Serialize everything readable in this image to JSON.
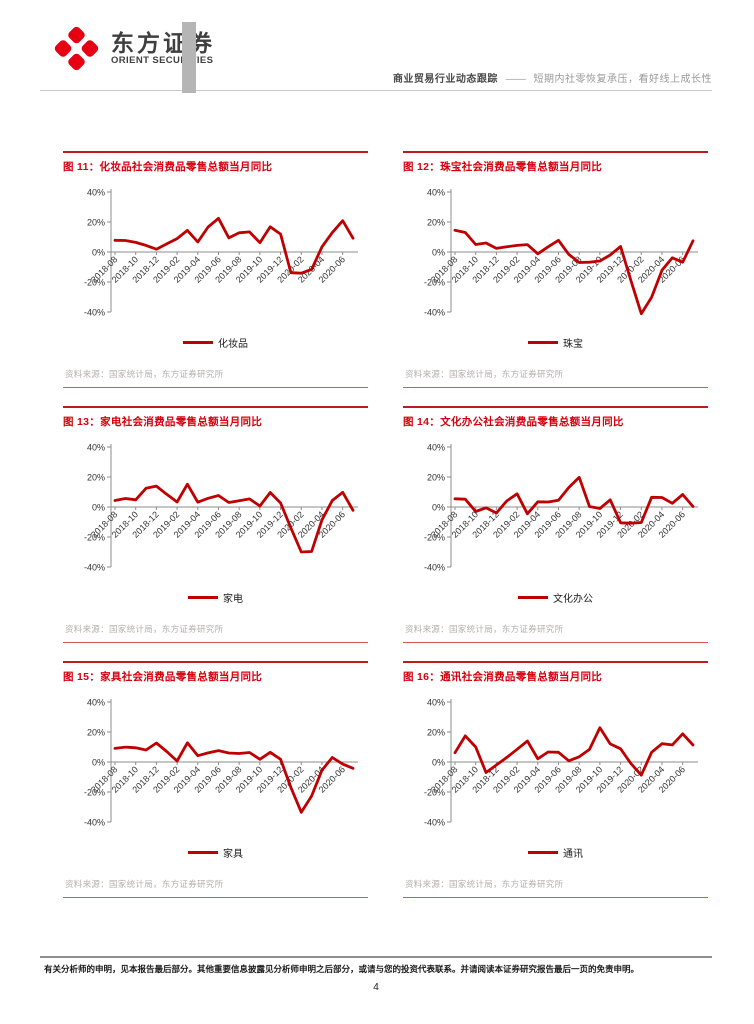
{
  "header": {
    "logo_cn": "东方证券",
    "logo_en": "ORIENT SECURITIES",
    "report_type": "商业贸易行业动态跟踪",
    "separator": "——",
    "report_title": "短期内社零恢复承压，看好线上成长性"
  },
  "footer": {
    "disclaimer": "有关分析师的申明，见本报告最后部分。其他重要信息披露见分析师申明之后部分，或请与您的投资代表联系。并请阅读本证券研究报告最后一页的免责申明。",
    "page_number": "4"
  },
  "theme": {
    "accent_red": "#d7000f",
    "chart_line_red": "#c00000",
    "block_border_top": "#c01920",
    "block_border_bottom": "#d25a52",
    "axis_gray": "#8c8c8c",
    "source_gray": "#b7aeae",
    "header_bar_gray": "#b5b5b5"
  },
  "chart_data": {
    "type": "line",
    "unit": "% YoY (当月同比)",
    "grid": false,
    "legend_position": "bottom",
    "line_color": "#c00000",
    "ylim": [
      -40,
      40
    ],
    "y_tick_labels": [
      "40%",
      "20%",
      "0%",
      "-20%",
      "-40%"
    ],
    "x": [
      "2018-08",
      "2018-09",
      "2018-10",
      "2018-11",
      "2018-12",
      "2019-01",
      "2019-02",
      "2019-03",
      "2019-04",
      "2019-05",
      "2019-06",
      "2019-07",
      "2019-08",
      "2019-09",
      "2019-10",
      "2019-11",
      "2019-12",
      "2020-01",
      "2020-02",
      "2020-03",
      "2020-04",
      "2020-05",
      "2020-06",
      "2020-07"
    ],
    "x_tick_labels": [
      "2018-08",
      "2018-10",
      "2018-12",
      "2019-02",
      "2019-04",
      "2019-06",
      "2019-08",
      "2019-10",
      "2019-12",
      "2020-02",
      "2020-04",
      "2020-06"
    ],
    "figures": [
      {
        "caption": "图 11：化妆品社会消费品零售总额当月同比",
        "legend": "化妆品",
        "values": [
          7.8,
          7.7,
          6.4,
          4.4,
          1.9,
          5.4,
          8.9,
          14.4,
          6.7,
          16.7,
          22.5,
          9.4,
          12.8,
          13.4,
          6.2,
          16.8,
          11.9,
          -13.8,
          -14.1,
          -11.6,
          3.5,
          12.9,
          20.9,
          9.2
        ],
        "source": "资料来源：国家统计局，东方证券研究所"
      },
      {
        "caption": "图 12：珠宝社会消费品零售总额当月同比",
        "legend": "珠宝",
        "values": [
          14.5,
          13.0,
          5.0,
          6.0,
          2.4,
          3.5,
          4.4,
          4.9,
          -1.2,
          3.5,
          7.8,
          -1.6,
          -7.0,
          -6.8,
          -6.0,
          -2.0,
          3.7,
          -19.0,
          -41.1,
          -30.1,
          -12.1,
          -3.9,
          -6.8,
          7.5
        ],
        "source": "资料来源：国家统计局，东方证券研究所"
      },
      {
        "caption": "图 13：家电社会消费品零售总额当月同比",
        "legend": "家电",
        "values": [
          4.3,
          5.7,
          4.8,
          12.5,
          13.9,
          8.5,
          3.3,
          15.2,
          3.2,
          5.8,
          7.7,
          3.0,
          4.2,
          5.4,
          0.7,
          9.7,
          2.7,
          -14.0,
          -30.0,
          -29.7,
          -8.5,
          4.3,
          9.8,
          -2.2
        ],
        "source": "资料来源：国家统计局，东方证券研究所"
      },
      {
        "caption": "图 14：文化办公社会消费品零售总额当月同比",
        "legend": "文化办公",
        "values": [
          5.5,
          5.2,
          -3.0,
          -0.5,
          -4.0,
          4.0,
          8.8,
          -4.5,
          3.5,
          3.3,
          4.5,
          13.0,
          19.8,
          0.3,
          -1.0,
          4.8,
          -10.5,
          -10.8,
          -10.3,
          6.5,
          6.3,
          2.5,
          8.3,
          0.3
        ],
        "source": "资料来源：国家统计局，东方证券研究所"
      },
      {
        "caption": "图 15：家具社会消费品零售总额当月同比",
        "legend": "家具",
        "values": [
          9.1,
          9.9,
          9.5,
          8.0,
          12.7,
          7.0,
          0.7,
          12.8,
          4.2,
          6.1,
          7.6,
          6.0,
          5.7,
          6.3,
          1.8,
          6.5,
          1.8,
          -17.0,
          -33.5,
          -22.7,
          -5.4,
          3.0,
          -1.4,
          -4.2
        ],
        "source": "资料来源：国家统计局，东方证券研究所"
      },
      {
        "caption": "图 16：通讯社会消费品零售总额当月同比",
        "legend": "通讯",
        "values": [
          6.2,
          17.4,
          10.0,
          -7.0,
          -2.0,
          3.0,
          8.5,
          14.0,
          2.1,
          6.7,
          6.5,
          0.8,
          3.5,
          8.4,
          22.9,
          12.1,
          8.8,
          -1.0,
          -8.8,
          6.5,
          12.2,
          11.4,
          18.8,
          11.3
        ],
        "source": "资料来源：国家统计局，东方证券研究所"
      }
    ]
  }
}
